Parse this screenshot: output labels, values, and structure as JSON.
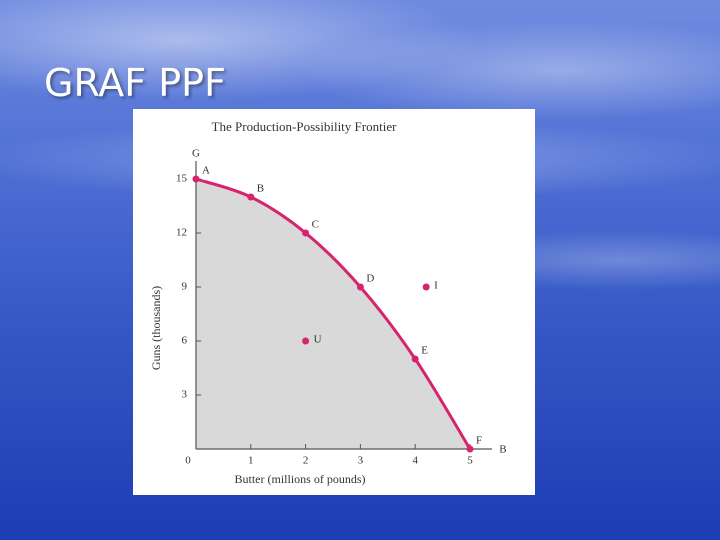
{
  "slide_title": "GRAF PPF",
  "chart_data": {
    "type": "line",
    "title": "The Production-Possibility Frontier",
    "x_label": "Butter (millions of pounds)",
    "y_label": "Guns (thousands)",
    "x_axis_end_label": "B",
    "y_axis_end_label": "G",
    "origin_label": "0",
    "x": [
      0,
      1,
      2,
      3,
      4,
      5
    ],
    "values": [
      15,
      14,
      12,
      9,
      5,
      0
    ],
    "point_labels": [
      "A",
      "B",
      "C",
      "D",
      "E",
      "F"
    ],
    "color": "#d6246e",
    "area_color": "#d9d9d9",
    "other_points": {
      "x": [
        2,
        4.2
      ],
      "values": [
        6,
        9
      ],
      "point_labels": [
        "U",
        "I"
      ]
    },
    "xlim": [
      0,
      5.4
    ],
    "ylim": [
      0,
      16
    ],
    "xticks": [
      1,
      2,
      3,
      4,
      5
    ],
    "yticks": [
      3,
      6,
      9,
      12,
      15
    ]
  }
}
